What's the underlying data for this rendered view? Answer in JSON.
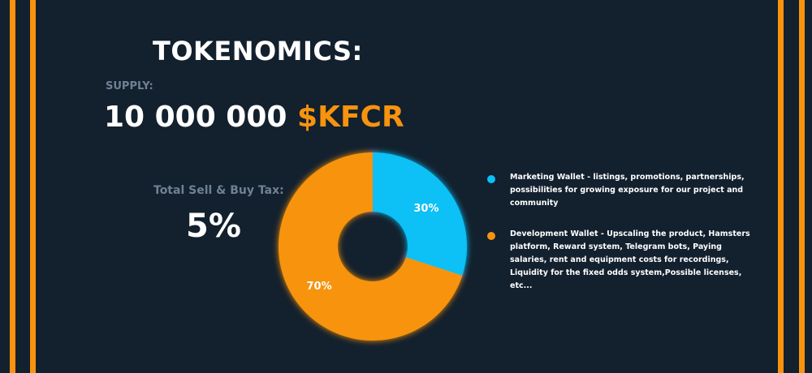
{
  "title": "TOKENOMICS:",
  "supply": {
    "label": "SUPPLY:",
    "amount": "10 000 000",
    "ticker": "$KFCR"
  },
  "tax": {
    "label": "Total Sell & Buy Tax:",
    "value": "5%"
  },
  "colors": {
    "background": "#13202e",
    "accent": "#f7930e",
    "marketing": "#0bc0f5",
    "development": "#f7930e"
  },
  "chart_data": {
    "type": "pie",
    "donut": true,
    "slices": [
      {
        "label": "30%",
        "value": 30,
        "color": "#0bc0f5"
      },
      {
        "label": "70%",
        "value": 70,
        "color": "#f7930e"
      }
    ],
    "legend": [
      {
        "text": "Marketing Wallet - listings, promotions, partnerships, possibilities for growing exposure for our project and community",
        "color": "#0bc0f5"
      },
      {
        "text": "Development Wallet - Upscaling the product, Hamsters platform, Reward system, Telegram bots, Paying salaries, rent and equipment costs for recordings, Liquidity for the fixed odds system,Possible licenses, etc...",
        "color": "#f7930e"
      }
    ],
    "legend_position": "right"
  }
}
